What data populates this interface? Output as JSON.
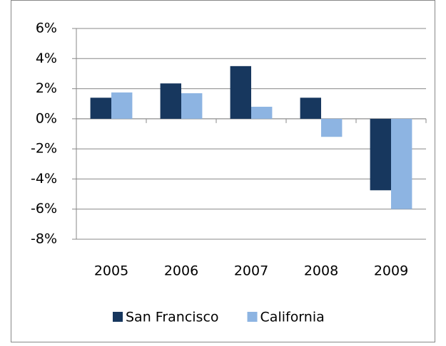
{
  "chart_data": {
    "type": "bar",
    "categories": [
      "2005",
      "2006",
      "2007",
      "2008",
      "2009"
    ],
    "series": [
      {
        "name": "San Francisco",
        "color": "#17375e",
        "values": [
          1.4,
          2.35,
          3.5,
          1.4,
          -4.75
        ]
      },
      {
        "name": "California",
        "color": "#8db4e2",
        "values": [
          1.75,
          1.7,
          0.8,
          -1.2,
          -6
        ]
      }
    ],
    "ylim": [
      -8,
      6
    ],
    "yticks": [
      {
        "value": -8,
        "label": "-8%"
      },
      {
        "value": -6,
        "label": "-6%"
      },
      {
        "value": -4,
        "label": "-4%"
      },
      {
        "value": -2,
        "label": "-2%"
      },
      {
        "value": 0,
        "label": "0%"
      },
      {
        "value": 2,
        "label": "2%"
      },
      {
        "value": 4,
        "label": "4%"
      },
      {
        "value": 6,
        "label": "6%"
      }
    ],
    "grid": true,
    "legend": "bottom"
  }
}
